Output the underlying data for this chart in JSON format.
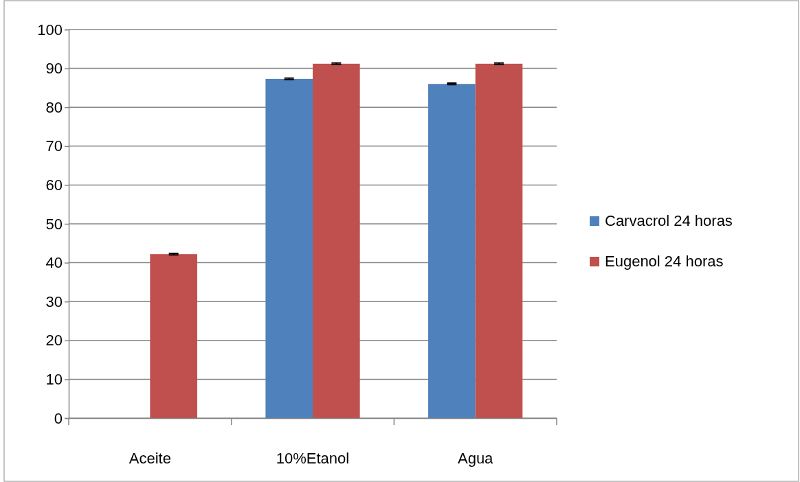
{
  "chart_data": {
    "type": "bar",
    "categories": [
      "Aceite",
      "10%Etanol",
      "Agua"
    ],
    "series": [
      {
        "name": "Carvacrol  24 horas",
        "color": "#4f81bd",
        "values": [
          0,
          87.3,
          86.0
        ],
        "errors": [
          null,
          0.2,
          0.2
        ]
      },
      {
        "name": "Eugenol 24 horas",
        "color": "#c0504d",
        "values": [
          42.2,
          91.2,
          91.2
        ],
        "errors": [
          0.2,
          0.2,
          0.2
        ]
      }
    ],
    "ylim": [
      0,
      100
    ],
    "yticks": [
      0,
      10,
      20,
      30,
      40,
      50,
      60,
      70,
      80,
      90,
      100
    ],
    "grid": "y",
    "legend": "right"
  }
}
